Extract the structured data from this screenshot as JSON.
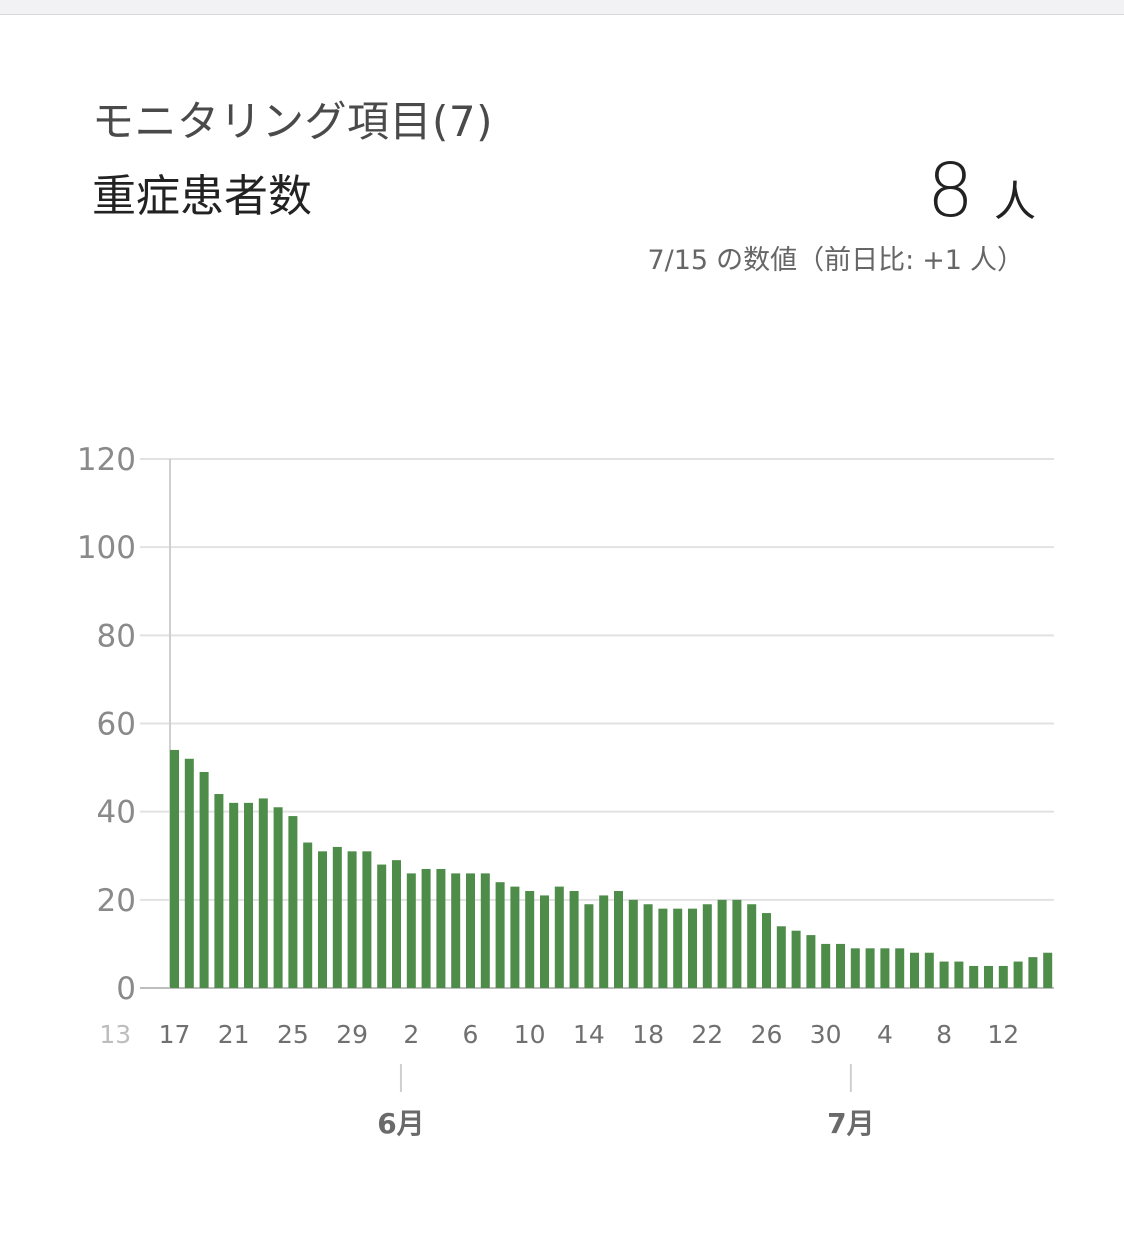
{
  "header": {
    "monitoring_label": "モニタリング項目(7)",
    "metric_label": "重症患者数",
    "value": "8",
    "unit": "人",
    "note_date": "7/15",
    "note_text": "の数値（前日比:",
    "note_delta": "+1",
    "note_unit": "人）"
  },
  "colors": {
    "bar": "#4e8c4a",
    "grid": "#e2e2e2",
    "axis": "#cfcfcf"
  },
  "chart_data": {
    "type": "bar",
    "title": "",
    "xlabel": "",
    "ylabel": "",
    "ylim": [
      0,
      120
    ],
    "yticks": [
      0,
      20,
      40,
      60,
      80,
      100,
      120
    ],
    "x_tick_labels": [
      "13",
      "17",
      "21",
      "25",
      "29",
      "2",
      "6",
      "10",
      "14",
      "18",
      "22",
      "26",
      "30",
      "4",
      "8",
      "12"
    ],
    "month_labels": [
      "6月",
      "7月"
    ],
    "categories": [
      "5/17",
      "5/18",
      "5/19",
      "5/20",
      "5/21",
      "5/22",
      "5/23",
      "5/24",
      "5/25",
      "5/26",
      "5/27",
      "5/28",
      "5/29",
      "5/30",
      "5/31",
      "6/1",
      "6/2",
      "6/3",
      "6/4",
      "6/5",
      "6/6",
      "6/7",
      "6/8",
      "6/9",
      "6/10",
      "6/11",
      "6/12",
      "6/13",
      "6/14",
      "6/15",
      "6/16",
      "6/17",
      "6/18",
      "6/19",
      "6/20",
      "6/21",
      "6/22",
      "6/23",
      "6/24",
      "6/25",
      "6/26",
      "6/27",
      "6/28",
      "6/29",
      "6/30",
      "7/1",
      "7/2",
      "7/3",
      "7/4",
      "7/5",
      "7/6",
      "7/7",
      "7/8",
      "7/9",
      "7/10",
      "7/11",
      "7/12",
      "7/13",
      "7/14",
      "7/15"
    ],
    "values": [
      54,
      52,
      49,
      44,
      42,
      42,
      43,
      41,
      39,
      33,
      31,
      32,
      31,
      31,
      28,
      29,
      26,
      27,
      27,
      26,
      26,
      26,
      24,
      23,
      22,
      21,
      23,
      22,
      19,
      21,
      22,
      20,
      19,
      18,
      18,
      18,
      19,
      20,
      20,
      19,
      17,
      14,
      13,
      12,
      10,
      10,
      9,
      9,
      9,
      9,
      8,
      8,
      6,
      6,
      5,
      5,
      5,
      6,
      7,
      8
    ],
    "grid": true,
    "legend": "none"
  }
}
